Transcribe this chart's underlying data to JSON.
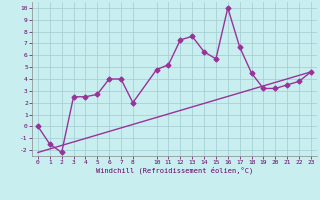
{
  "title": "",
  "xlabel": "Windchill (Refroidissement éolien,°C)",
  "ylabel": "",
  "background_color": "#c8eef0",
  "grid_color": "#a0ccd0",
  "line_color": "#993399",
  "xlim": [
    -0.5,
    23.5
  ],
  "ylim": [
    -2.5,
    10.5
  ],
  "xticks": [
    0,
    1,
    2,
    3,
    4,
    5,
    6,
    7,
    8,
    10,
    11,
    12,
    13,
    14,
    15,
    16,
    17,
    18,
    19,
    20,
    21,
    22,
    23
  ],
  "yticks": [
    -2,
    -1,
    0,
    1,
    2,
    3,
    4,
    5,
    6,
    7,
    8,
    9,
    10
  ],
  "line1_x": [
    0,
    1,
    2,
    3,
    4,
    5,
    6,
    7,
    8,
    10,
    11,
    12,
    13,
    14,
    15,
    16,
    17,
    18,
    19,
    20,
    21,
    22,
    23
  ],
  "line1_y": [
    0,
    -1.5,
    -2.2,
    2.5,
    2.5,
    2.7,
    4.0,
    4.0,
    2.0,
    4.8,
    5.2,
    7.3,
    7.6,
    6.3,
    5.7,
    10.0,
    6.7,
    4.5,
    3.2,
    3.2,
    3.5,
    3.8,
    4.6
  ],
  "line2_x": [
    0,
    23
  ],
  "line2_y": [
    -2.2,
    4.6
  ],
  "marker": "D",
  "marker_size": 2.5,
  "line_width": 1.0
}
